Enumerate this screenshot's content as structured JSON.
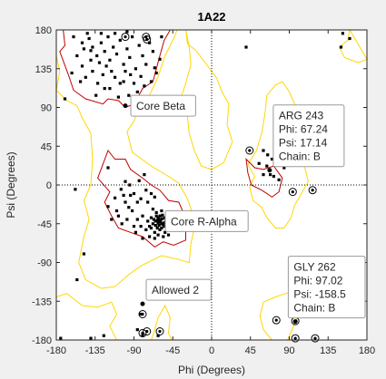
{
  "chart_data": {
    "type": "scatter",
    "title": "1A22",
    "xlabel": "Phi (Degrees)",
    "ylabel": "Psi (Degrees)",
    "xlim": [
      -180,
      180
    ],
    "ylim": [
      -180,
      180
    ],
    "xticks": [
      -180,
      -135,
      -90,
      -45,
      0,
      45,
      90,
      135,
      180
    ],
    "yticks": [
      -180,
      -135,
      -90,
      -45,
      0,
      45,
      90,
      135,
      180
    ],
    "colors": {
      "core": "#c00000",
      "allowed": "#ffd700",
      "points": "#000000",
      "ref": "#000000"
    },
    "region_labels": [
      {
        "label": "Core Beta",
        "anchor": [
          -100,
          92
        ]
      },
      {
        "label": "Core R-Alpha",
        "anchor": [
          -60,
          -42
        ]
      },
      {
        "label": "Allowed 2",
        "anchor": [
          -80,
          -138
        ]
      }
    ],
    "datatips": [
      {
        "lines": [
          "ARG 243",
          "Phi: 67.24",
          "Psi: 17.14",
          "Chain: B"
        ],
        "anchor": [
          67.24,
          17.14
        ]
      },
      {
        "lines": [
          "GLY 262",
          "Phi: 97.02",
          "Psi: -158.5",
          "Chain: B"
        ],
        "anchor": [
          97.02,
          -158.5
        ]
      }
    ],
    "glycines": [
      [
        -100,
        172
      ],
      [
        -76,
        172
      ],
      [
        -75,
        -170
      ],
      [
        -80,
        -172
      ],
      [
        -60,
        -170
      ],
      [
        -75,
        169
      ],
      [
        44,
        40
      ],
      [
        94,
        -8
      ],
      [
        117,
        -6
      ],
      [
        75,
        -157
      ],
      [
        97,
        -158
      ],
      [
        97,
        -178
      ],
      [
        120,
        -178
      ],
      [
        -80,
        -150
      ]
    ],
    "core_regions": [
      [
        [
          -172,
          180
        ],
        [
          -170,
          162
        ],
        [
          -176,
          155
        ],
        [
          -166,
          128
        ],
        [
          -160,
          110
        ],
        [
          -146,
          100
        ],
        [
          -126,
          94
        ],
        [
          -120,
          100
        ],
        [
          -108,
          98
        ],
        [
          -100,
          90
        ],
        [
          -90,
          94
        ],
        [
          -80,
          112
        ],
        [
          -68,
          120
        ],
        [
          -60,
          150
        ],
        [
          -55,
          168
        ],
        [
          -48,
          180
        ]
      ],
      [
        [
          -120,
          40
        ],
        [
          -112,
          30
        ],
        [
          -100,
          30
        ],
        [
          -94,
          18
        ],
        [
          -80,
          8
        ],
        [
          -70,
          0
        ],
        [
          -60,
          -6
        ],
        [
          -50,
          -18
        ],
        [
          -38,
          -20
        ],
        [
          -32,
          -34
        ],
        [
          -30,
          -48
        ],
        [
          -30,
          -64
        ],
        [
          -44,
          -70
        ],
        [
          -56,
          -66
        ],
        [
          -66,
          -72
        ],
        [
          -80,
          -60
        ],
        [
          -94,
          -55
        ],
        [
          -108,
          -50
        ],
        [
          -116,
          -36
        ],
        [
          -124,
          -20
        ],
        [
          -118,
          -8
        ],
        [
          -132,
          8
        ],
        [
          -126,
          24
        ]
      ],
      [
        [
          40,
          30
        ],
        [
          50,
          20
        ],
        [
          60,
          18
        ],
        [
          72,
          22
        ],
        [
          82,
          8
        ],
        [
          78,
          -8
        ],
        [
          70,
          -14
        ],
        [
          58,
          -6
        ],
        [
          46,
          0
        ],
        [
          42,
          14
        ]
      ]
    ],
    "allowed_regions": [
      [
        [
          -180,
          180
        ],
        [
          -180,
          150
        ],
        [
          -176,
          132
        ],
        [
          -180,
          110
        ],
        [
          -168,
          98
        ],
        [
          -156,
          92
        ],
        [
          -150,
          78
        ],
        [
          -140,
          60
        ],
        [
          -138,
          30
        ],
        [
          -140,
          0
        ],
        [
          -148,
          -18
        ],
        [
          -142,
          -40
        ],
        [
          -148,
          -60
        ],
        [
          -154,
          -90
        ],
        [
          -146,
          -110
        ],
        [
          -128,
          -120
        ],
        [
          -112,
          -118
        ],
        [
          -96,
          -104
        ],
        [
          -82,
          -94
        ],
        [
          -70,
          -88
        ],
        [
          -58,
          -82
        ],
        [
          -40,
          -86
        ],
        [
          -26,
          -90
        ],
        [
          -24,
          -68
        ],
        [
          -20,
          -50
        ],
        [
          -22,
          -34
        ],
        [
          -28,
          -16
        ],
        [
          -38,
          2
        ],
        [
          -50,
          10
        ],
        [
          -70,
          22
        ],
        [
          -92,
          38
        ],
        [
          -98,
          62
        ],
        [
          -90,
          74
        ],
        [
          -82,
          94
        ],
        [
          -72,
          104
        ],
        [
          -62,
          126
        ],
        [
          -54,
          150
        ],
        [
          -44,
          170
        ],
        [
          -40,
          180
        ]
      ],
      [
        [
          -30,
          180
        ],
        [
          -28,
          164
        ],
        [
          -18,
          156
        ],
        [
          -6,
          140
        ],
        [
          0,
          132
        ],
        [
          6,
          124
        ],
        [
          12,
          108
        ],
        [
          20,
          94
        ],
        [
          18,
          70
        ],
        [
          24,
          50
        ],
        [
          14,
          26
        ],
        [
          0,
          18
        ],
        [
          -12,
          22
        ],
        [
          -20,
          40
        ],
        [
          -26,
          60
        ],
        [
          -28,
          80
        ],
        [
          -36,
          100
        ],
        [
          -30,
          118
        ],
        [
          -24,
          140
        ],
        [
          -26,
          160
        ]
      ],
      [
        [
          64,
          104
        ],
        [
          74,
          116
        ],
        [
          82,
          120
        ],
        [
          90,
          108
        ],
        [
          98,
          90
        ],
        [
          102,
          72
        ],
        [
          106,
          54
        ],
        [
          110,
          38
        ],
        [
          108,
          20
        ],
        [
          112,
          4
        ],
        [
          104,
          -10
        ],
        [
          96,
          -24
        ],
        [
          92,
          -38
        ],
        [
          84,
          -50
        ],
        [
          74,
          -50
        ],
        [
          64,
          -38
        ],
        [
          58,
          -26
        ],
        [
          48,
          -18
        ],
        [
          44,
          -2
        ],
        [
          50,
          10
        ],
        [
          42,
          24
        ],
        [
          52,
          40
        ],
        [
          58,
          60
        ],
        [
          62,
          84
        ]
      ],
      [
        [
          60,
          -136
        ],
        [
          74,
          -130
        ],
        [
          86,
          -126
        ],
        [
          98,
          -124
        ],
        [
          104,
          -138
        ],
        [
          100,
          -152
        ],
        [
          94,
          -166
        ],
        [
          88,
          -180
        ],
        [
          70,
          -180
        ],
        [
          60,
          -168
        ],
        [
          56,
          -152
        ]
      ],
      [
        [
          160,
          180
        ],
        [
          158,
          168
        ],
        [
          148,
          160
        ],
        [
          154,
          148
        ],
        [
          170,
          142
        ],
        [
          180,
          146
        ]
      ],
      [
        [
          -180,
          -130
        ],
        [
          -168,
          -126
        ],
        [
          -150,
          -140
        ],
        [
          -132,
          -142
        ],
        [
          -116,
          -136
        ],
        [
          -110,
          -150
        ],
        [
          -118,
          -164
        ],
        [
          -110,
          -180
        ],
        [
          -180,
          -180
        ]
      ],
      [
        [
          -70,
          -180
        ],
        [
          -66,
          -168
        ],
        [
          -62,
          -154
        ],
        [
          -54,
          -140
        ],
        [
          -48,
          -154
        ],
        [
          -50,
          -172
        ],
        [
          -46,
          -180
        ]
      ]
    ],
    "points": [
      [
        -160,
        172
      ],
      [
        -150,
        165
      ],
      [
        -148,
        158
      ],
      [
        -142,
        170
      ],
      [
        -138,
        160
      ],
      [
        -133,
        150
      ],
      [
        -128,
        165
      ],
      [
        -124,
        155
      ],
      [
        -120,
        172
      ],
      [
        -118,
        145
      ],
      [
        -114,
        160
      ],
      [
        -110,
        152
      ],
      [
        -106,
        168
      ],
      [
        -102,
        140
      ],
      [
        -98,
        158
      ],
      [
        -95,
        148
      ],
      [
        -92,
        172
      ],
      [
        -88,
        135
      ],
      [
        -84,
        162
      ],
      [
        -80,
        150
      ],
      [
        -76,
        140
      ],
      [
        -72,
        165
      ],
      [
        -68,
        155
      ],
      [
        -64,
        130
      ],
      [
        -60,
        146
      ],
      [
        -58,
        172
      ],
      [
        -150,
        138
      ],
      [
        -146,
        125
      ],
      [
        -138,
        132
      ],
      [
        -132,
        118
      ],
      [
        -126,
        128
      ],
      [
        -118,
        112
      ],
      [
        -112,
        125
      ],
      [
        -106,
        118
      ],
      [
        -100,
        132
      ],
      [
        -96,
        104
      ],
      [
        -90,
        118
      ],
      [
        -86,
        108
      ],
      [
        -82,
        126
      ],
      [
        -78,
        115
      ],
      [
        -140,
        145
      ],
      [
        -152,
        120
      ],
      [
        -156,
        150
      ],
      [
        -162,
        130
      ],
      [
        -70,
        120
      ],
      [
        -66,
        136
      ],
      [
        -108,
        102
      ],
      [
        -122,
        138
      ],
      [
        -130,
        142
      ],
      [
        -116,
        132
      ],
      [
        -102,
        120
      ],
      [
        -94,
        128
      ],
      [
        -124,
        112
      ],
      [
        -134,
        104
      ],
      [
        -140,
        156
      ],
      [
        -128,
        176
      ],
      [
        -144,
        176
      ],
      [
        -112,
        176
      ],
      [
        -98,
        178
      ],
      [
        -60,
        -40
      ],
      [
        -58,
        -45
      ],
      [
        -62,
        -38
      ],
      [
        -55,
        -48
      ],
      [
        -65,
        -42
      ],
      [
        -52,
        -40
      ],
      [
        -68,
        -45
      ],
      [
        -57,
        -35
      ],
      [
        -63,
        -50
      ],
      [
        -50,
        -46
      ],
      [
        -70,
        -38
      ],
      [
        -54,
        -55
      ],
      [
        -66,
        -55
      ],
      [
        -60,
        -52
      ],
      [
        -48,
        -38
      ],
      [
        -72,
        -48
      ],
      [
        -58,
        -30
      ],
      [
        -64,
        -32
      ],
      [
        -52,
        -34
      ],
      [
        -46,
        -50
      ],
      [
        -74,
        -42
      ],
      [
        -62,
        -58
      ],
      [
        -56,
        -60
      ],
      [
        -68,
        -28
      ],
      [
        -50,
        -58
      ],
      [
        -76,
        -52
      ],
      [
        -80,
        -36
      ],
      [
        -44,
        -44
      ],
      [
        -82,
        -48
      ],
      [
        -66,
        -62
      ],
      [
        -59,
        -43
      ],
      [
        -61,
        -47
      ],
      [
        -63,
        -41
      ],
      [
        -57,
        -39
      ],
      [
        -55,
        -44
      ],
      [
        -65,
        -47
      ],
      [
        -53,
        -42
      ],
      [
        -67,
        -40
      ],
      [
        -60,
        -36
      ],
      [
        -58,
        -50
      ],
      [
        -62,
        -44
      ],
      [
        -56,
        -46
      ],
      [
        -64,
        -36
      ],
      [
        -54,
        -38
      ],
      [
        -70,
        -50
      ],
      [
        -48,
        -48
      ],
      [
        -86,
        -20
      ],
      [
        -90,
        -10
      ],
      [
        -95,
        0
      ],
      [
        -100,
        -20
      ],
      [
        -105,
        -5
      ],
      [
        -110,
        -30
      ],
      [
        -84,
        5
      ],
      [
        -78,
        12
      ],
      [
        -92,
        -30
      ],
      [
        -98,
        -40
      ],
      [
        -104,
        -45
      ],
      [
        -112,
        -15
      ],
      [
        -88,
        -55
      ],
      [
        -80,
        -62
      ],
      [
        -120,
        -25
      ],
      [
        -116,
        -40
      ],
      [
        -74,
        -20
      ],
      [
        -70,
        -10
      ],
      [
        -66,
        -14
      ],
      [
        -76,
        -6
      ],
      [
        -82,
        -16
      ],
      [
        -94,
        -12
      ],
      [
        -100,
        4
      ],
      [
        -108,
        -36
      ],
      [
        -86,
        -40
      ],
      [
        -90,
        -48
      ],
      [
        -72,
        -60
      ],
      [
        -96,
        -26
      ],
      [
        -102,
        -12
      ],
      [
        -120,
        20
      ],
      [
        -170,
        100
      ],
      [
        -158,
        -5
      ],
      [
        -148,
        -80
      ],
      [
        -156,
        -110
      ],
      [
        -82,
        -150
      ],
      [
        -86,
        -168
      ],
      [
        -80,
        -175
      ],
      [
        -62,
        -175
      ],
      [
        -125,
        -175
      ],
      [
        -140,
        -178
      ],
      [
        -175,
        -178
      ],
      [
        40,
        160
      ],
      [
        150,
        160
      ],
      [
        160,
        170
      ],
      [
        152,
        176
      ],
      [
        60,
        40
      ],
      [
        65,
        35
      ],
      [
        72,
        10
      ],
      [
        68,
        12
      ],
      [
        75,
        25
      ],
      [
        55,
        25
      ],
      [
        78,
        6
      ],
      [
        70,
        30
      ],
      [
        84,
        20
      ],
      [
        60,
        12
      ],
      [
        64,
        22
      ]
    ]
  }
}
